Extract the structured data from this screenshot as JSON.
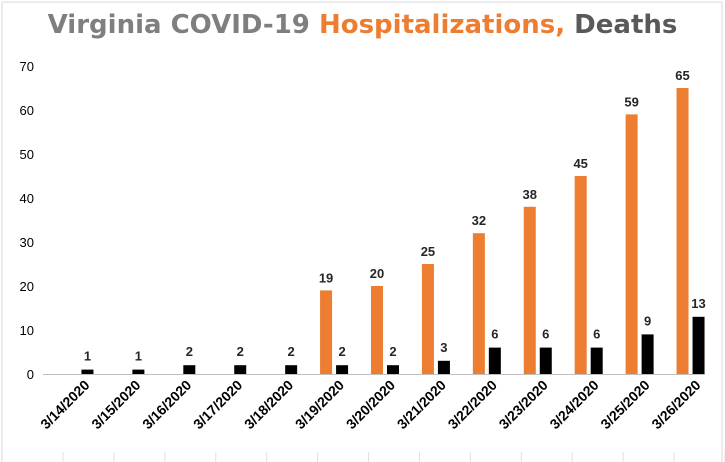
{
  "chart_data": {
    "type": "bar",
    "title_parts": [
      "Virginia COVID-19 ",
      "Hospitalizations,",
      " Deaths"
    ],
    "categories": [
      "3/14/2020",
      "3/15/2020",
      "3/16/2020",
      "3/17/2020",
      "3/18/2020",
      "3/19/2020",
      "3/20/2020",
      "3/21/2020",
      "3/22/2020",
      "3/23/2020",
      "3/24/2020",
      "3/25/2020",
      "3/26/2020"
    ],
    "series": [
      {
        "name": "Hospitalizations",
        "color": "#ed7d31",
        "values": [
          null,
          null,
          null,
          null,
          null,
          19,
          20,
          25,
          32,
          38,
          45,
          59,
          65
        ]
      },
      {
        "name": "Deaths",
        "color": "#000000",
        "values": [
          1,
          1,
          2,
          2,
          2,
          2,
          2,
          3,
          6,
          6,
          6,
          9,
          13
        ]
      }
    ],
    "ylim": [
      0,
      70
    ],
    "yticks": [
      0,
      10,
      20,
      30,
      40,
      50,
      60,
      70
    ],
    "grid": false,
    "legend": "none"
  }
}
